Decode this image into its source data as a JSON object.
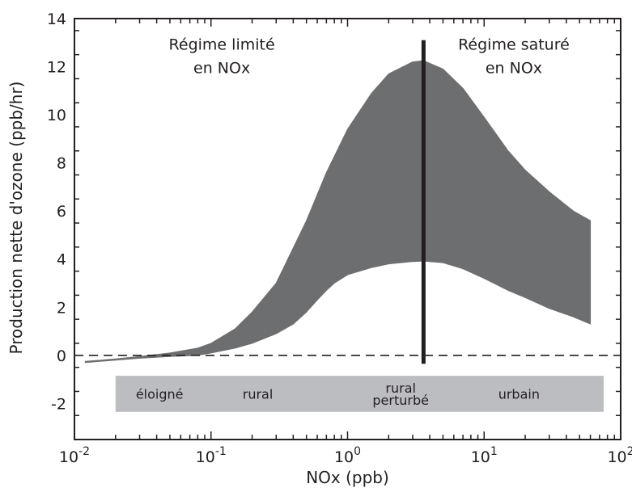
{
  "chart_data": {
    "type": "area",
    "xscale": "log",
    "xlim": [
      0.01,
      100
    ],
    "ylim": [
      -3.5,
      14
    ],
    "xlabel": "NOx (ppb)",
    "ylabel": "Production nette d'ozone (ppb/hr)",
    "x_ticks": [
      {
        "base": "10",
        "exp": "-2",
        "value": 0.01
      },
      {
        "base": "10",
        "exp": "-1",
        "value": 0.1
      },
      {
        "base": "10",
        "exp": "0",
        "value": 1
      },
      {
        "base": "10",
        "exp": "1",
        "value": 10
      },
      {
        "base": "10",
        "exp": "2",
        "value": 100
      }
    ],
    "y_ticks": [
      -2,
      0,
      2,
      4,
      6,
      8,
      10,
      12,
      14
    ],
    "band": {
      "upper": [
        {
          "x": 0.012,
          "y": -0.25
        },
        {
          "x": 0.02,
          "y": -0.15
        },
        {
          "x": 0.03,
          "y": -0.05
        },
        {
          "x": 0.05,
          "y": 0.1
        },
        {
          "x": 0.08,
          "y": 0.3
        },
        {
          "x": 0.1,
          "y": 0.5
        },
        {
          "x": 0.15,
          "y": 1.1
        },
        {
          "x": 0.2,
          "y": 1.8
        },
        {
          "x": 0.3,
          "y": 3.0
        },
        {
          "x": 0.5,
          "y": 5.6
        },
        {
          "x": 0.7,
          "y": 7.6
        },
        {
          "x": 1.0,
          "y": 9.4
        },
        {
          "x": 1.5,
          "y": 10.9
        },
        {
          "x": 2.0,
          "y": 11.7
        },
        {
          "x": 3.0,
          "y": 12.2
        },
        {
          "x": 3.6,
          "y": 12.25
        },
        {
          "x": 5.0,
          "y": 11.9
        },
        {
          "x": 7.0,
          "y": 11.1
        },
        {
          "x": 10.0,
          "y": 9.9
        },
        {
          "x": 15.0,
          "y": 8.5
        },
        {
          "x": 20.0,
          "y": 7.7
        },
        {
          "x": 30.0,
          "y": 6.8
        },
        {
          "x": 45.0,
          "y": 6.0
        },
        {
          "x": 60.0,
          "y": 5.6
        }
      ],
      "lower": [
        {
          "x": 0.012,
          "y": -0.3
        },
        {
          "x": 0.02,
          "y": -0.2
        },
        {
          "x": 0.03,
          "y": -0.12
        },
        {
          "x": 0.05,
          "y": -0.05
        },
        {
          "x": 0.08,
          "y": 0.0
        },
        {
          "x": 0.1,
          "y": 0.1
        },
        {
          "x": 0.15,
          "y": 0.3
        },
        {
          "x": 0.2,
          "y": 0.5
        },
        {
          "x": 0.3,
          "y": 0.9
        },
        {
          "x": 0.4,
          "y": 1.3
        },
        {
          "x": 0.5,
          "y": 1.8
        },
        {
          "x": 0.6,
          "y": 2.3
        },
        {
          "x": 0.7,
          "y": 2.7
        },
        {
          "x": 0.8,
          "y": 3.0
        },
        {
          "x": 1.0,
          "y": 3.35
        },
        {
          "x": 1.5,
          "y": 3.65
        },
        {
          "x": 2.0,
          "y": 3.8
        },
        {
          "x": 3.0,
          "y": 3.9
        },
        {
          "x": 3.6,
          "y": 3.92
        },
        {
          "x": 5.0,
          "y": 3.85
        },
        {
          "x": 7.0,
          "y": 3.6
        },
        {
          "x": 10.0,
          "y": 3.2
        },
        {
          "x": 15.0,
          "y": 2.7
        },
        {
          "x": 20.0,
          "y": 2.4
        },
        {
          "x": 30.0,
          "y": 1.95
        },
        {
          "x": 45.0,
          "y": 1.6
        },
        {
          "x": 60.0,
          "y": 1.3
        }
      ]
    },
    "zero_line": {
      "y": 0,
      "style": "dashed"
    },
    "divider": {
      "x": 3.6,
      "y_from": -0.35,
      "y_to": 13.1
    },
    "regions": [
      {
        "label_lines": [
          "Régime limité",
          "en NOx"
        ],
        "x": 0.12,
        "y_top": 12.7
      },
      {
        "label_lines": [
          "Régime saturé",
          "en NOx"
        ],
        "x": 16.5,
        "y_top": 12.7
      }
    ],
    "environment_bar": {
      "x_from": 0.02,
      "x_to": 75,
      "y_from": -2.35,
      "y_to": -0.85,
      "labels": [
        {
          "lines": [
            "éloigné"
          ],
          "x": 0.042
        },
        {
          "lines": [
            "rural"
          ],
          "x": 0.22
        },
        {
          "lines": [
            "rural",
            "perturbé"
          ],
          "x": 2.45
        },
        {
          "lines": [
            "urbain"
          ],
          "x": 18
        }
      ]
    },
    "grid": false,
    "legend": "none",
    "colors": {
      "band": "#6d6e70",
      "axis": "#231f20",
      "divider": "#231f20",
      "environment_bar": "#bbbdc0",
      "text": "#231f20"
    }
  }
}
